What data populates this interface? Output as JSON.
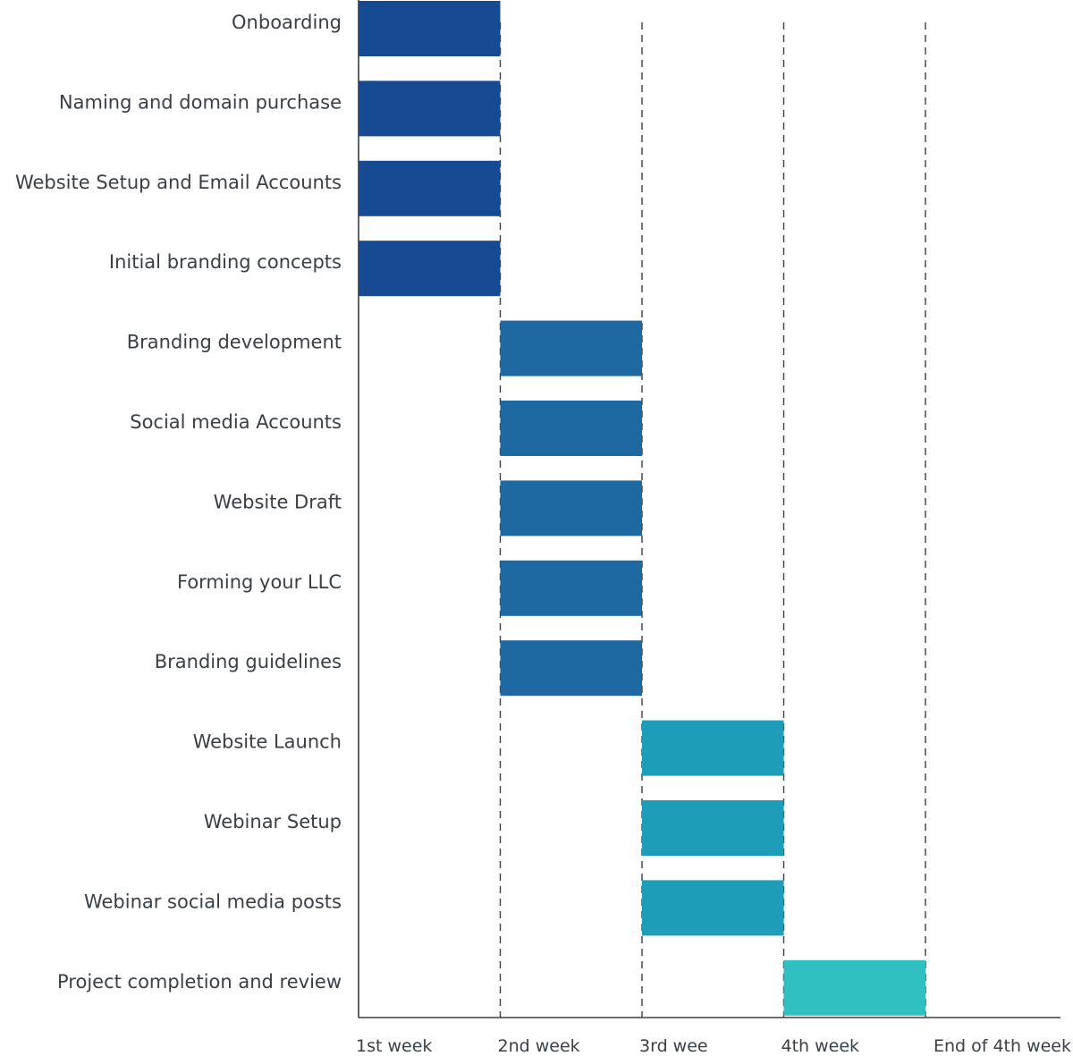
{
  "chart_data": {
    "type": "bar",
    "orientation": "horizontal",
    "subtype": "gantt",
    "title": "",
    "xlabel": "",
    "ylabel": "",
    "x_ticks": [
      "1st week",
      "2nd week",
      "3rd wee",
      "4th week",
      "End of 4th week"
    ],
    "xlim": [
      0,
      5
    ],
    "grid": "vertical dashed",
    "legend": "none",
    "tasks": [
      {
        "label": "Onboarding",
        "start": 0,
        "end": 1,
        "color": "#164a93"
      },
      {
        "label": "Naming and domain purchase",
        "start": 0,
        "end": 1,
        "color": "#164a93"
      },
      {
        "label": "Website Setup and Email Accounts ",
        "start": 0,
        "end": 1,
        "color": "#164a93"
      },
      {
        "label": "Initial branding concepts",
        "start": 0,
        "end": 1,
        "color": "#164a93"
      },
      {
        "label": "Branding development",
        "start": 1,
        "end": 2,
        "color": "#1f69a3"
      },
      {
        "label": "Social media Accounts ",
        "start": 1,
        "end": 2,
        "color": "#1f69a3"
      },
      {
        "label": "Website Draft",
        "start": 1,
        "end": 2,
        "color": "#1f69a3"
      },
      {
        "label": "Forming your LLC",
        "start": 1,
        "end": 2,
        "color": "#1f69a3"
      },
      {
        "label": "Branding guidelines",
        "start": 1,
        "end": 2,
        "color": "#1f69a3"
      },
      {
        "label": "Website Launch",
        "start": 2,
        "end": 3,
        "color": "#1d9db8"
      },
      {
        "label": "Webinar Setup ",
        "start": 2,
        "end": 3,
        "color": "#1d9db8"
      },
      {
        "label": "Webinar social media posts",
        "start": 2,
        "end": 3,
        "color": "#1d9db8"
      },
      {
        "label": "Project completion and review",
        "start": 3,
        "end": 4,
        "color": "#31c0c2"
      }
    ]
  }
}
